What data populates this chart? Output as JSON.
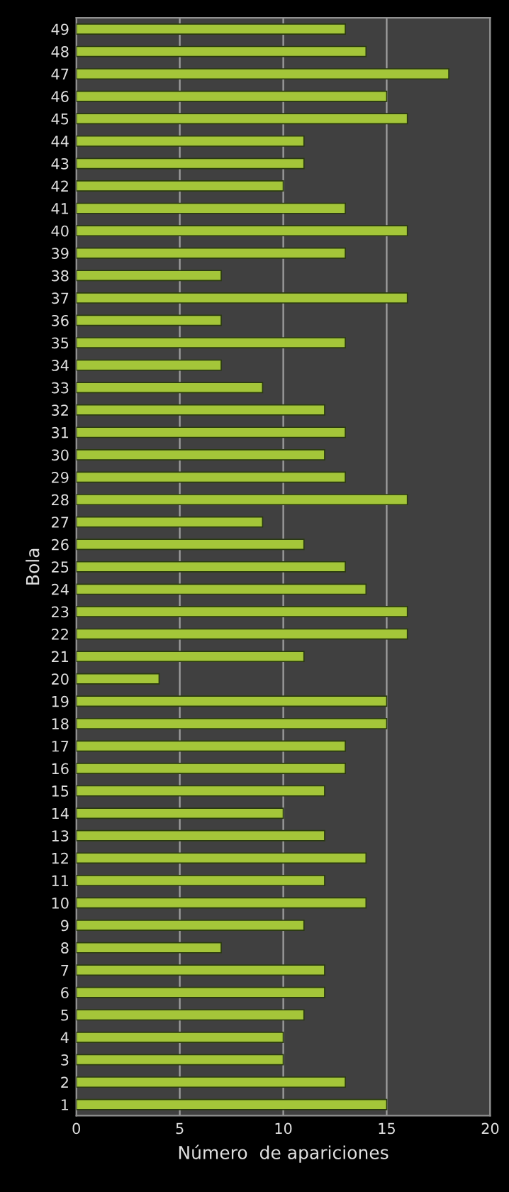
{
  "chart_data": {
    "type": "bar",
    "orientation": "horizontal",
    "xlabel": "Número  de apariciones",
    "ylabel": "Bola",
    "categories": [
      "49",
      "48",
      "47",
      "46",
      "45",
      "44",
      "43",
      "42",
      "41",
      "40",
      "39",
      "38",
      "37",
      "36",
      "35",
      "34",
      "33",
      "32",
      "31",
      "30",
      "29",
      "28",
      "27",
      "26",
      "25",
      "24",
      "23",
      "22",
      "21",
      "20",
      "19",
      "18",
      "17",
      "16",
      "15",
      "14",
      "13",
      "12",
      "11",
      "10",
      "9",
      "8",
      "7",
      "6",
      "5",
      "4",
      "3",
      "2",
      "1"
    ],
    "values": [
      13,
      14,
      18,
      15,
      16,
      11,
      11,
      10,
      13,
      16,
      13,
      7,
      16,
      7,
      13,
      7,
      9,
      12,
      13,
      12,
      13,
      16,
      9,
      11,
      13,
      14,
      16,
      16,
      11,
      4,
      15,
      15,
      13,
      13,
      12,
      10,
      12,
      14,
      12,
      14,
      11,
      7,
      12,
      12,
      11,
      10,
      10,
      13,
      15
    ],
    "color": "#a4c639",
    "xlim": [
      0,
      20
    ],
    "xticks": [
      0,
      5,
      10,
      15,
      20
    ],
    "grid": "x",
    "legend": false
  }
}
